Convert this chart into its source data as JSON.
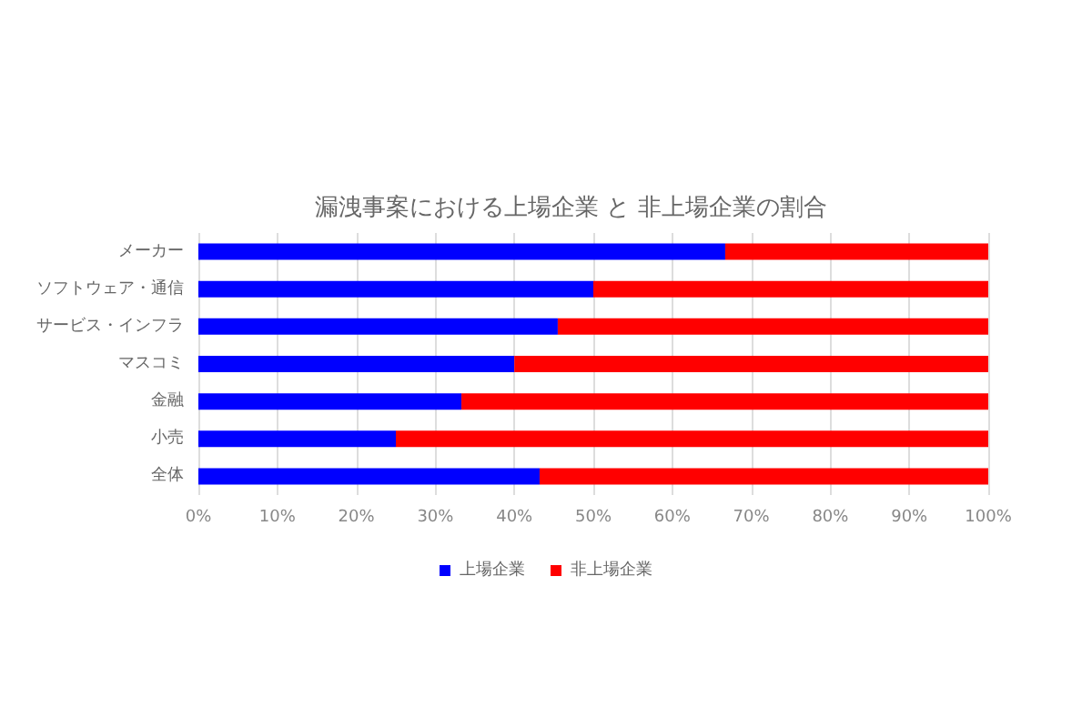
{
  "chart_data": {
    "type": "bar",
    "orientation": "horizontal",
    "stacked": true,
    "title": "漏洩事案における上場企業 と 非上場企業の割合",
    "categories": [
      "メーカー",
      "ソフトウェア・通信",
      "サービス・インフラ",
      "マスコミ",
      "金融",
      "小売",
      "全体"
    ],
    "series": [
      {
        "name": "上場企業",
        "color": "#0000ff",
        "values": [
          66.7,
          50,
          45.5,
          40,
          33.3,
          25,
          43.2
        ]
      },
      {
        "name": "非上場企業",
        "color": "#ff0000",
        "values": [
          33.3,
          50,
          54.5,
          60,
          66.7,
          75,
          56.8
        ]
      }
    ],
    "xlim": [
      0,
      100
    ],
    "xticks": [
      {
        "value": 0,
        "label": "0%"
      },
      {
        "value": 10,
        "label": "10%"
      },
      {
        "value": 20,
        "label": "20%"
      },
      {
        "value": 30,
        "label": "30%"
      },
      {
        "value": 40,
        "label": "40%"
      },
      {
        "value": 50,
        "label": "50%"
      },
      {
        "value": 60,
        "label": "60%"
      },
      {
        "value": 70,
        "label": "70%"
      },
      {
        "value": 80,
        "label": "80%"
      },
      {
        "value": 90,
        "label": "90%"
      },
      {
        "value": 100,
        "label": "100%"
      }
    ],
    "grid": "x",
    "legend": "bottom"
  }
}
